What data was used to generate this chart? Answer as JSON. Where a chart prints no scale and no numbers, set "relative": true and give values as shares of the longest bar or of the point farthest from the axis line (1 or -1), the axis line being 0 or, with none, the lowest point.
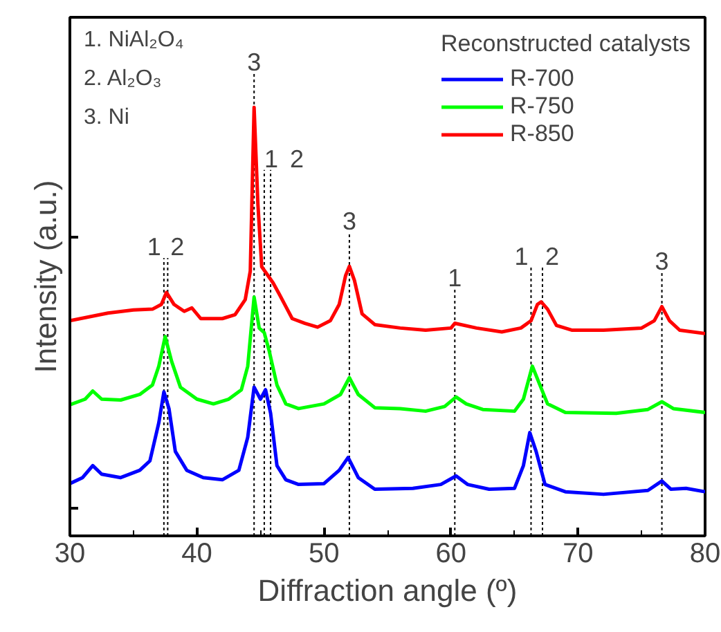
{
  "chart_data": {
    "type": "line",
    "relative": true,
    "xlabel": "Diffraction angle (º)",
    "ylabel": "Intensity (a.u.)",
    "legend_title": "Reconstructed catalysts",
    "legend": "top right",
    "grid": false,
    "tick_labels": "x",
    "line_style": "solid",
    "marker": "none",
    "xlim": [
      30,
      80
    ],
    "xticks": [
      30,
      40,
      50,
      60,
      70,
      80
    ],
    "series": [
      {
        "name": "R-700",
        "color": "#0000ff",
        "x": [
          30,
          31,
          31.8,
          32.5,
          34,
          35.5,
          36.3,
          37.0,
          37.4,
          37.8,
          38.3,
          39.2,
          40.5,
          42,
          43.3,
          44.0,
          44.5,
          45.0,
          45.4,
          45.8,
          46.3,
          47,
          48,
          50,
          51.2,
          51.9,
          52.7,
          54,
          57,
          59.2,
          60.4,
          61.3,
          63,
          65,
          65.7,
          66.2,
          66.7,
          67.4,
          69,
          72,
          75.5,
          76.6,
          77.3,
          78.5,
          80
        ],
        "values": [
          0.122,
          0.136,
          0.164,
          0.144,
          0.136,
          0.153,
          0.175,
          0.264,
          0.336,
          0.297,
          0.197,
          0.153,
          0.136,
          0.131,
          0.153,
          0.23,
          0.347,
          0.319,
          0.341,
          0.286,
          0.164,
          0.131,
          0.12,
          0.122,
          0.153,
          0.183,
          0.136,
          0.109,
          0.111,
          0.12,
          0.14,
          0.12,
          0.109,
          0.111,
          0.164,
          0.241,
          0.197,
          0.12,
          0.103,
          0.097,
          0.106,
          0.128,
          0.109,
          0.111,
          0.103
        ]
      },
      {
        "name": "R-750",
        "color": "#00ff00",
        "x": [
          30,
          31.2,
          31.8,
          32.5,
          34,
          35.5,
          36.5,
          37.0,
          37.5,
          38.0,
          38.7,
          40,
          41.3,
          42.5,
          43.5,
          44.0,
          44.5,
          44.9,
          45.3,
          45.7,
          46.3,
          47,
          48,
          50,
          51.3,
          52.0,
          52.7,
          54,
          56,
          58,
          59.5,
          60.4,
          61.2,
          62.5,
          65,
          65.7,
          66.4,
          67.0,
          67.6,
          69,
          73,
          75.5,
          76.6,
          77.5,
          80
        ],
        "values": [
          0.306,
          0.319,
          0.338,
          0.319,
          0.317,
          0.33,
          0.352,
          0.396,
          0.465,
          0.408,
          0.347,
          0.319,
          0.308,
          0.319,
          0.341,
          0.396,
          0.557,
          0.485,
          0.474,
          0.43,
          0.352,
          0.308,
          0.297,
          0.308,
          0.33,
          0.369,
          0.33,
          0.299,
          0.297,
          0.291,
          0.302,
          0.324,
          0.308,
          0.295,
          0.291,
          0.319,
          0.396,
          0.352,
          0.308,
          0.288,
          0.286,
          0.295,
          0.313,
          0.297,
          0.288
        ]
      },
      {
        "name": "R-850",
        "color": "#ff0000",
        "x": [
          30,
          33,
          35,
          36.5,
          37.2,
          37.6,
          38.2,
          39.0,
          39.6,
          40.3,
          42,
          43,
          43.8,
          44.2,
          44.5,
          44.8,
          45.1,
          45.6,
          46,
          46.5,
          47,
          47.5,
          48.5,
          49.5,
          50.5,
          51.2,
          51.7,
          52.0,
          52.4,
          53,
          54,
          56,
          58,
          60,
          60.3,
          62,
          64,
          65.5,
          66.3,
          66.8,
          67.1,
          67.6,
          68.3,
          69.5,
          72,
          75,
          76,
          76.6,
          77.2,
          78,
          80
        ],
        "values": [
          0.502,
          0.52,
          0.527,
          0.529,
          0.54,
          0.568,
          0.54,
          0.524,
          0.532,
          0.507,
          0.507,
          0.516,
          0.551,
          0.618,
          1.0,
          0.774,
          0.628,
          0.607,
          0.59,
          0.563,
          0.535,
          0.507,
          0.496,
          0.487,
          0.502,
          0.54,
          0.607,
          0.629,
          0.596,
          0.518,
          0.493,
          0.485,
          0.48,
          0.485,
          0.496,
          0.485,
          0.476,
          0.485,
          0.502,
          0.54,
          0.546,
          0.529,
          0.491,
          0.48,
          0.48,
          0.485,
          0.502,
          0.535,
          0.502,
          0.48,
          0.472
        ]
      }
    ],
    "ref_lines": [
      {
        "axis": "x",
        "value": 37.4,
        "color": "#000000",
        "line_style": "dotted"
      },
      {
        "axis": "x",
        "value": 37.7,
        "color": "#000000",
        "line_style": "dotted"
      },
      {
        "axis": "x",
        "value": 44.5,
        "color": "#000000",
        "line_style": "dotted"
      },
      {
        "axis": "x",
        "value": 45.3,
        "color": "#000000",
        "line_style": "dotted"
      },
      {
        "axis": "x",
        "value": 45.8,
        "color": "#000000",
        "line_style": "dotted"
      },
      {
        "axis": "x",
        "value": 52.0,
        "color": "#000000",
        "line_style": "dotted"
      },
      {
        "axis": "x",
        "value": 60.3,
        "color": "#000000",
        "line_style": "dotted"
      },
      {
        "axis": "x",
        "value": 66.3,
        "color": "#000000",
        "line_style": "dotted"
      },
      {
        "axis": "x",
        "value": 67.2,
        "color": "#000000",
        "line_style": "dotted"
      },
      {
        "axis": "x",
        "value": 76.6,
        "color": "#000000",
        "line_style": "dotted"
      }
    ],
    "annotations": [
      "1. NiAl₂O₄",
      "2. Al₂O₃",
      "3. Ni",
      "1",
      "2",
      "3",
      "1",
      "2",
      "3",
      "1",
      "1",
      "2",
      "3"
    ]
  }
}
